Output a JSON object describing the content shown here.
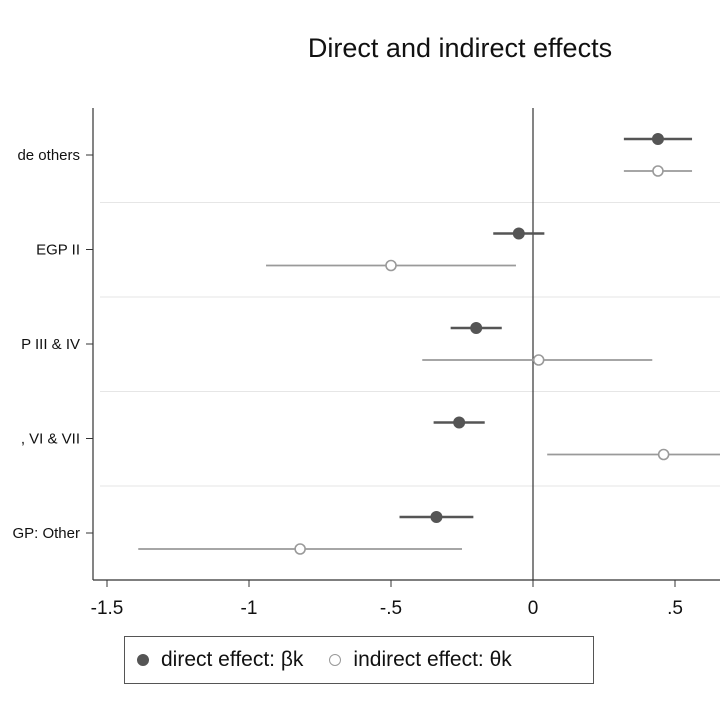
{
  "chart_data": {
    "type": "dot-and-whisker",
    "title": "Direct and indirect effects",
    "xlabel": "",
    "ylabel": "",
    "xlim": [
      -1.5,
      0.5
    ],
    "x_ticks": [
      -1.5,
      -1,
      -0.5,
      0,
      0.5
    ],
    "x_tick_labels": [
      "-1.5",
      "-1",
      "-.5",
      "0",
      ".5"
    ],
    "reference_line_x": 0,
    "grid": "horizontal separators between categories",
    "legend_position": "bottom",
    "categories": [
      "de others",
      "EGP II",
      "P III & IV",
      ", VI & VII",
      "GP: Other"
    ],
    "series": [
      {
        "name": "direct effect: βk",
        "marker": "filled",
        "color": "#555555",
        "points": [
          {
            "category": "de others",
            "estimate": 0.44,
            "ci": [
              0.32,
              0.56
            ]
          },
          {
            "category": "EGP II",
            "estimate": -0.05,
            "ci": [
              -0.14,
              0.04
            ]
          },
          {
            "category": "P III & IV",
            "estimate": -0.2,
            "ci": [
              -0.29,
              -0.11
            ]
          },
          {
            "category": ", VI & VII",
            "estimate": -0.26,
            "ci": [
              -0.35,
              -0.17
            ]
          },
          {
            "category": "GP: Other",
            "estimate": -0.34,
            "ci": [
              -0.47,
              -0.21
            ]
          }
        ]
      },
      {
        "name": "indirect effect: θk",
        "marker": "hollow",
        "color": "#9a9a9a",
        "points": [
          {
            "category": "de others",
            "estimate": 0.44,
            "ci": [
              0.32,
              0.56
            ]
          },
          {
            "category": "EGP II",
            "estimate": -0.5,
            "ci": [
              -0.94,
              -0.06
            ]
          },
          {
            "category": "P III & IV",
            "estimate": 0.02,
            "ci": [
              -0.39,
              0.42
            ]
          },
          {
            "category": ", VI & VII",
            "estimate": 0.46,
            "ci": [
              0.05,
              0.66
            ]
          },
          {
            "category": "GP: Other",
            "estimate": -0.82,
            "ci": [
              -1.39,
              -0.25
            ]
          }
        ]
      }
    ]
  },
  "legend": {
    "direct_label": "direct effect: βk",
    "indirect_label": "indirect effect: θk"
  }
}
